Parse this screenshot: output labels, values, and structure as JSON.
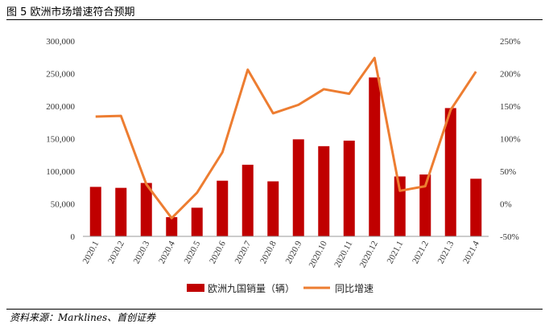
{
  "figure": {
    "title": "图 5 欧洲市场增速符合预期",
    "source": "资料来源：Marklines、首创证券"
  },
  "colors": {
    "bar": "#c00000",
    "line": "#ed7d31"
  },
  "chart_data": {
    "type": "bar+line",
    "categories": [
      "2020.1",
      "2020.2",
      "2020.3",
      "2020.4",
      "2020.5",
      "2020.6",
      "2020.7",
      "2020.8",
      "2020.9",
      "2020.10",
      "2020.11",
      "2020.12",
      "2021.1",
      "2021.2",
      "2021.3",
      "2021.4"
    ],
    "series": [
      {
        "name": "欧洲九国销量（辆）",
        "type": "bar",
        "axis": "left",
        "values": [
          76000,
          74500,
          82000,
          29500,
          44000,
          85500,
          110000,
          84500,
          149000,
          138500,
          147000,
          244000,
          92000,
          95000,
          197000,
          88500
        ]
      },
      {
        "name": "同比增速",
        "type": "line",
        "axis": "right",
        "values": [
          134,
          135,
          30,
          -22,
          17,
          79,
          206,
          139,
          152,
          176,
          169,
          224,
          20,
          27,
          144,
          203
        ]
      }
    ],
    "y_left": {
      "min": 0,
      "max": 300000,
      "ticks": [
        "0",
        "50,000",
        "100,000",
        "150,000",
        "200,000",
        "250,000",
        "300,000"
      ]
    },
    "y_right": {
      "min": -50,
      "max": 250,
      "ticks": [
        "-50%",
        "0%",
        "50%",
        "100%",
        "150%",
        "200%",
        "250%"
      ]
    },
    "legend_position": "bottom"
  }
}
